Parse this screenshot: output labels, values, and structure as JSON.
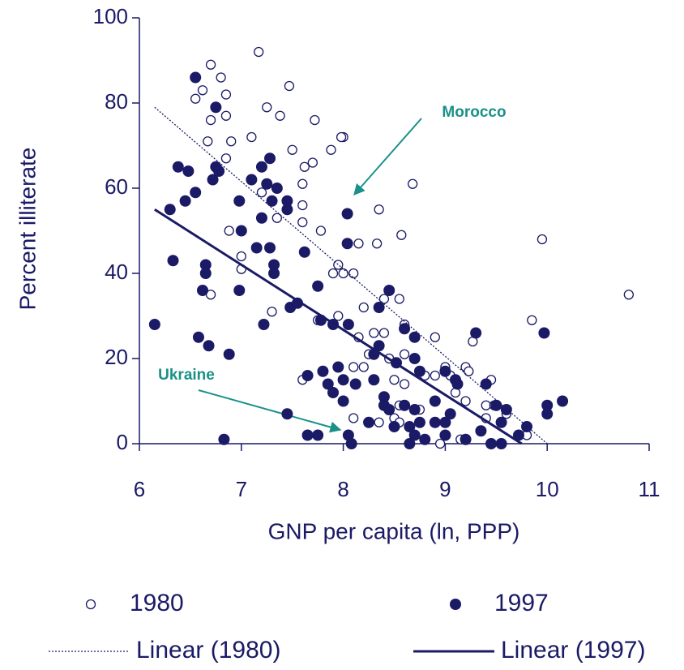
{
  "chart_data": {
    "type": "scatter",
    "xlabel": "GNP per capita (ln, PPP)",
    "ylabel": "Percent illiterate",
    "xlim": [
      6,
      11
    ],
    "xticks": [
      6,
      7,
      8,
      9,
      10,
      11
    ],
    "ylim": [
      0,
      100
    ],
    "yticks": [
      0,
      20,
      40,
      60,
      80,
      100
    ],
    "grid": false,
    "annotations": [
      {
        "text": "Morocco"
      },
      {
        "text": "Ukraine"
      }
    ],
    "series": [
      {
        "name": "1980",
        "color": "#1a1a66",
        "marker": "hollow",
        "x": [
          6.7,
          7.17,
          6.8,
          6.55,
          6.62,
          6.85,
          6.7,
          6.85,
          7.25,
          7.38,
          7.47,
          6.67,
          6.9,
          7.1,
          6.85,
          7.5,
          7.72,
          7.7,
          7.62,
          8.0,
          7.98,
          7.88,
          7.6,
          8.68,
          7.6,
          7.6,
          7.35,
          7.2,
          6.88,
          7.0,
          7.0,
          6.7,
          7.78,
          8.35,
          8.15,
          8.33,
          8.57,
          9.95,
          10.8,
          7.95,
          8.0,
          7.9,
          8.1,
          7.3,
          7.75,
          7.95,
          8.2,
          8.4,
          8.55,
          8.6,
          9.85,
          8.15,
          8.3,
          8.4,
          8.25,
          8.45,
          8.6,
          8.2,
          8.1,
          8.9,
          8.8,
          8.9,
          9.0,
          9.05,
          9.2,
          9.23,
          9.27,
          9.1,
          9.2,
          9.45,
          9.4,
          9.48,
          9.4,
          9.6,
          7.6,
          8.5,
          8.6,
          8.55,
          8.5,
          8.55,
          8.75,
          8.95,
          9.15,
          9.8,
          8.35,
          8.1
        ],
        "values": [
          89,
          92,
          86,
          81,
          83,
          82,
          76,
          77,
          79,
          77,
          84,
          71,
          71,
          72,
          67,
          69,
          76,
          66,
          65,
          72,
          72,
          69,
          61,
          61,
          56,
          52,
          53,
          59,
          50,
          44,
          41,
          35,
          50,
          55,
          47,
          47,
          49,
          48,
          35,
          42,
          40,
          40,
          40,
          31,
          29,
          30,
          32,
          34,
          34,
          28,
          29,
          25,
          26,
          26,
          21,
          20,
          21,
          18,
          18,
          25,
          16,
          16,
          18,
          16,
          18,
          17,
          24,
          12,
          10,
          15,
          9,
          9,
          6,
          7,
          15,
          15,
          14,
          9,
          6,
          5,
          8,
          0,
          1,
          2,
          5,
          6
        ]
      },
      {
        "name": "1997",
        "color": "#1a1a66",
        "marker": "filled",
        "x": [
          6.55,
          6.75,
          6.38,
          6.48,
          6.75,
          6.78,
          6.72,
          7.1,
          7.2,
          7.28,
          7.25,
          7.3,
          7.35,
          7.45,
          7.45,
          6.98,
          6.45,
          6.55,
          6.3,
          7.0,
          7.2,
          7.15,
          7.28,
          7.32,
          7.32,
          6.65,
          6.65,
          6.62,
          6.98,
          8.04,
          8.04,
          7.62,
          7.75,
          7.48,
          7.55,
          7.78,
          7.9,
          8.05,
          6.33,
          6.15,
          7.22,
          6.58,
          6.68,
          6.88,
          8.45,
          8.35,
          8.6,
          8.7,
          8.35,
          8.3,
          8.52,
          8.7,
          8.75,
          9.0,
          9.3,
          9.97,
          9.12,
          9.4,
          9.5,
          9.55,
          9.6,
          9.8,
          10.0,
          10.15,
          10.0,
          9.35,
          7.65,
          7.8,
          7.95,
          7.85,
          8.0,
          8.12,
          8.3,
          8.4,
          8.45,
          8.6,
          8.5,
          8.7,
          8.65,
          8.75,
          8.7,
          8.65,
          8.8,
          8.9,
          9.0,
          9.05,
          9.2,
          9.45,
          9.55,
          9.72,
          7.45,
          7.65,
          7.75,
          6.83,
          8.05,
          8.08,
          8.25,
          8.4,
          8.9,
          7.9,
          8.0,
          9.0,
          9.1
        ],
        "values": [
          86,
          79,
          65,
          64,
          65,
          64,
          62,
          62,
          65,
          67,
          61,
          57,
          60,
          57,
          55,
          57,
          57,
          59,
          55,
          50,
          53,
          46,
          46,
          42,
          40,
          42,
          40,
          36,
          36,
          54,
          47,
          45,
          37,
          32,
          33,
          29,
          28,
          28,
          43,
          28,
          28,
          25,
          23,
          21,
          36,
          32,
          27,
          25,
          23,
          21,
          19,
          20,
          17,
          17,
          26,
          26,
          14,
          14,
          9,
          5,
          8,
          4,
          9,
          10,
          7,
          3,
          16,
          17,
          18,
          14,
          15,
          14,
          15,
          11,
          8,
          9,
          4,
          8,
          4,
          5,
          2,
          0,
          1,
          5,
          5,
          7,
          1,
          0,
          0,
          2,
          7,
          2,
          2,
          1,
          2,
          0,
          5,
          9,
          10,
          12,
          10,
          2,
          15
        ]
      },
      {
        "name": "Linear (1980)",
        "color": "#1a1a66",
        "style": "dotted",
        "x": [
          6.15,
          10.0
        ],
        "values": [
          79,
          0
        ]
      },
      {
        "name": "Linear (1997)",
        "color": "#1a1a66",
        "style": "solid",
        "x": [
          6.15,
          9.75
        ],
        "values": [
          55,
          0
        ]
      }
    ]
  }
}
